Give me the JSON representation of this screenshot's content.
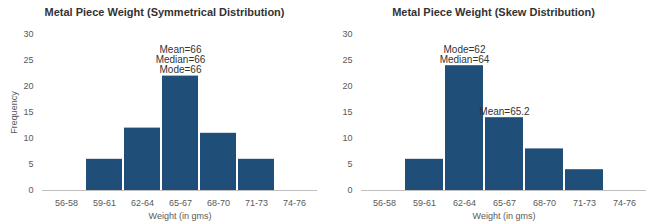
{
  "chart_data": [
    {
      "type": "bar",
      "title": "Metal Piece Weight  (Symmetrical Distribution)",
      "xlabel": "Weight (in gms)",
      "ylabel": "Frequency",
      "categories": [
        "56-58",
        "59-61",
        "62-64",
        "65-67",
        "68-70",
        "71-73",
        "74-76"
      ],
      "values": [
        0,
        6,
        12,
        22,
        11,
        6,
        0
      ],
      "color": "#1f4e79",
      "ylim": [
        0,
        30
      ],
      "yticks": [
        0,
        5,
        10,
        15,
        20,
        25,
        30
      ],
      "grid": false,
      "annotations": [
        {
          "category": "65-67",
          "lines": [
            "Mean=66",
            "Median=66",
            "Mode=66"
          ]
        }
      ]
    },
    {
      "type": "bar",
      "title": "Metal Piece Weight (Skew Distribution)",
      "xlabel": "Weight (in gms)",
      "categories": [
        "56-58",
        "59-61",
        "62-64",
        "65-67",
        "68-70",
        "71-73",
        "74-76"
      ],
      "values": [
        0,
        6,
        24,
        14,
        8,
        4,
        0
      ],
      "color": "#1f4e79",
      "ylim": [
        0,
        30
      ],
      "yticks": [
        0,
        5,
        10,
        15,
        20,
        25,
        30
      ],
      "grid": false,
      "annotations": [
        {
          "category": "62-64",
          "lines": [
            "Mode=62",
            "Median=64"
          ]
        },
        {
          "category": "65-67",
          "lines": [
            "Mean=65.2"
          ]
        }
      ]
    }
  ]
}
